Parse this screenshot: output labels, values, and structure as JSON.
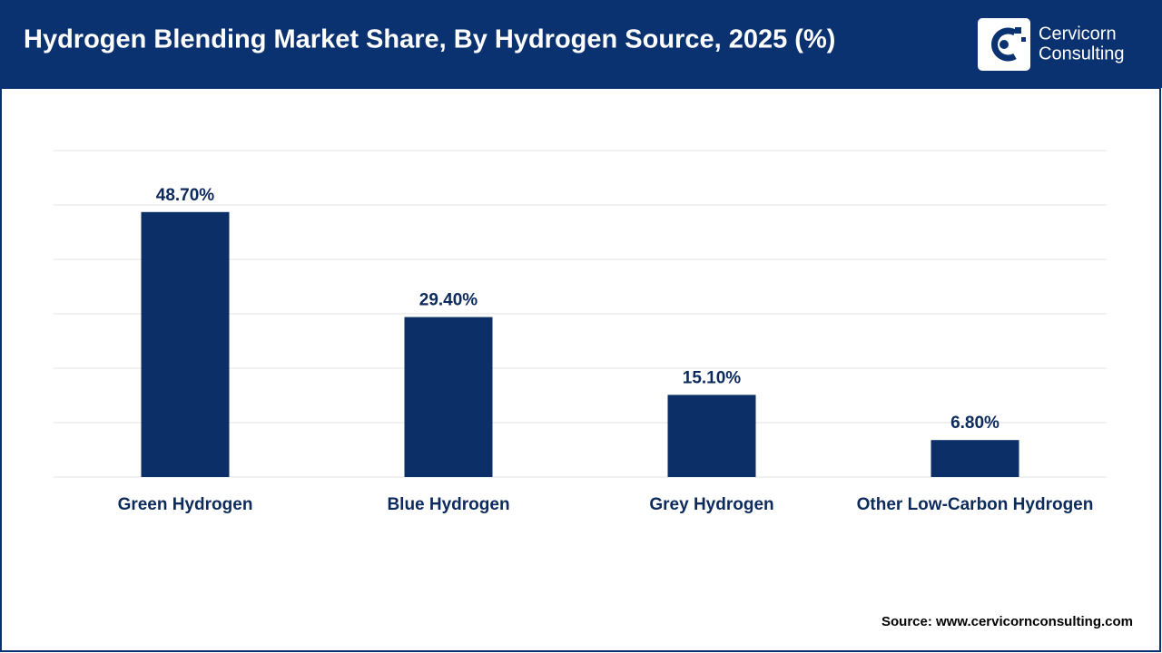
{
  "chart_data": {
    "type": "bar",
    "title": "Hydrogen Blending Market Share, By Hydrogen Source, 2025 (%)",
    "logo": [
      "Cervicorn",
      "Consulting"
    ],
    "categories": [
      "Green Hydrogen",
      "Blue Hydrogen",
      "Grey Hydrogen",
      "Other Low-Carbon Hydrogen"
    ],
    "values": [
      48.7,
      29.4,
      15.1,
      6.8
    ],
    "value_labels": [
      "48.70%",
      "29.40%",
      "15.10%",
      "6.80%"
    ],
    "color": "#0b2f66",
    "ylim": [
      0,
      60
    ],
    "yticks": [
      0,
      10,
      20,
      30,
      40,
      50,
      60
    ],
    "grid": true,
    "source": "Source: www.cervicornconsulting.com"
  }
}
